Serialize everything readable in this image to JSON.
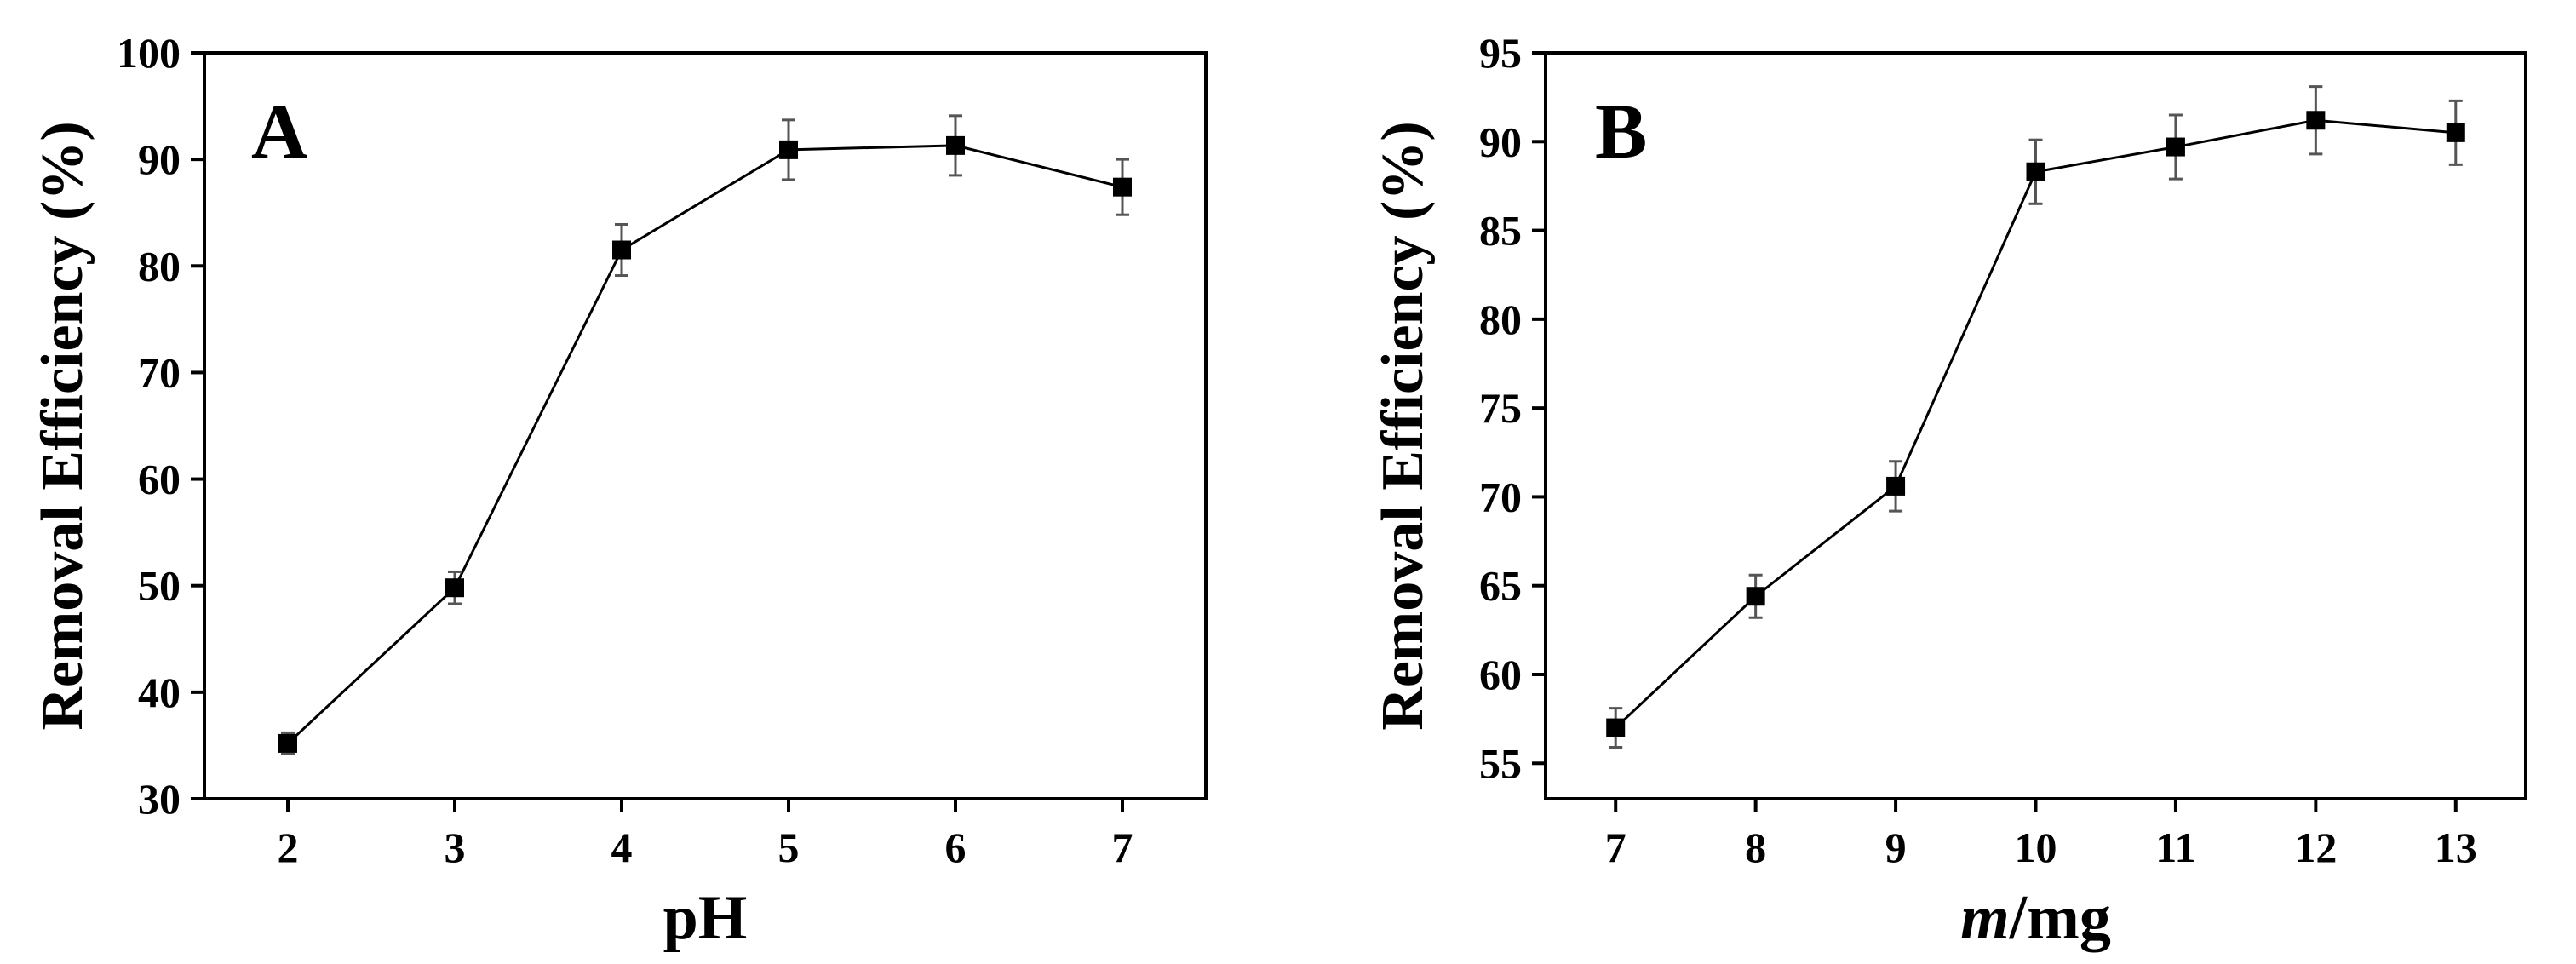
{
  "chart_data": [
    {
      "type": "line",
      "panel_label": "A",
      "xlabel": "pH",
      "ylabel": "Removal Efficiency (%)",
      "x": [
        2,
        3,
        4,
        5,
        6,
        7
      ],
      "y": [
        35.2,
        49.8,
        81.5,
        90.9,
        91.3,
        87.4
      ],
      "yerr": [
        1.0,
        1.5,
        2.4,
        2.8,
        2.8,
        2.6
      ],
      "xlim": [
        1.5,
        7.5
      ],
      "ylim": [
        30,
        100
      ],
      "xticks": [
        2,
        3,
        4,
        5,
        6,
        7
      ],
      "yticks": [
        30,
        40,
        50,
        60,
        70,
        80,
        90,
        100
      ],
      "marker": "square",
      "grid": false,
      "legend": false
    },
    {
      "type": "line",
      "panel_label": "B",
      "xlabel": "m/mg",
      "xlabel_italic_part": "m",
      "xlabel_rest": "/mg",
      "ylabel": "Removal Efficiency (%)",
      "x": [
        7,
        8,
        9,
        10,
        11,
        12,
        13
      ],
      "y": [
        57.0,
        64.4,
        70.6,
        88.3,
        89.7,
        91.2,
        90.5
      ],
      "yerr": [
        1.1,
        1.2,
        1.4,
        1.8,
        1.8,
        1.9,
        1.8
      ],
      "xlim": [
        6.5,
        13.5
      ],
      "ylim": [
        53,
        95
      ],
      "xticks": [
        7,
        8,
        9,
        10,
        11,
        12,
        13
      ],
      "yticks": [
        55,
        60,
        65,
        70,
        75,
        80,
        85,
        90,
        95
      ],
      "marker": "square",
      "grid": false,
      "legend": false
    }
  ]
}
